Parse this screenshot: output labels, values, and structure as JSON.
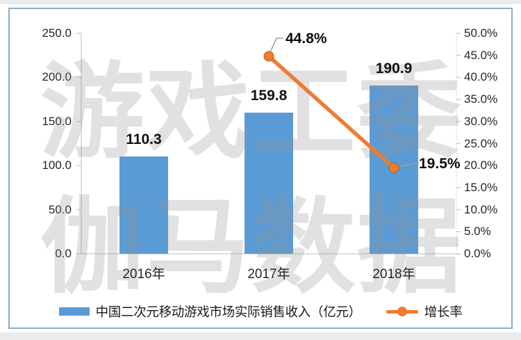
{
  "watermark": {
    "line1": "游戏工委",
    "line2": "伽马数据"
  },
  "chart_data": {
    "type": "combo",
    "categories": [
      "2016年",
      "2017年",
      "2018年"
    ],
    "series": [
      {
        "name": "中国二次元移动游戏市场实际销售收入（亿元）",
        "type": "bar",
        "axis": "left",
        "values": [
          110.3,
          159.8,
          190.9
        ],
        "labels": [
          "110.3",
          "159.8",
          "190.9"
        ],
        "color": "#5B9BD5"
      },
      {
        "name": "增长率",
        "type": "line",
        "axis": "right",
        "values": [
          null,
          44.8,
          19.5
        ],
        "labels": [
          null,
          "44.8%",
          "19.5%"
        ],
        "color": "#ED7D31",
        "marker_edge_color": "#C55A11"
      }
    ],
    "left_axis": {
      "min": 0,
      "max": 250,
      "step": 50,
      "tick_labels": [
        "250.0",
        "200.0",
        "150.0",
        "100.0",
        "50.0",
        "0.0"
      ]
    },
    "right_axis": {
      "min": 0,
      "max": 50,
      "step": 5,
      "tick_labels": [
        "50.0%",
        "45.0%",
        "40.0%",
        "35.0%",
        "30.0%",
        "25.0%",
        "20.0%",
        "15.0%",
        "10.0%",
        "5.0%",
        "0.0%"
      ]
    },
    "grid": false,
    "legend_position": "bottom",
    "legend": [
      {
        "label": "中国二次元移动游戏市场实际销售收入（亿元）",
        "marker": "bar",
        "color": "#5B9BD5"
      },
      {
        "label": "增长率",
        "marker": "line-dot",
        "color": "#ED7D31"
      }
    ],
    "axis_line_color": "#C9C9C9",
    "leader_line_color": "#9E9E9E",
    "card_border_color": "#84ADCC"
  }
}
